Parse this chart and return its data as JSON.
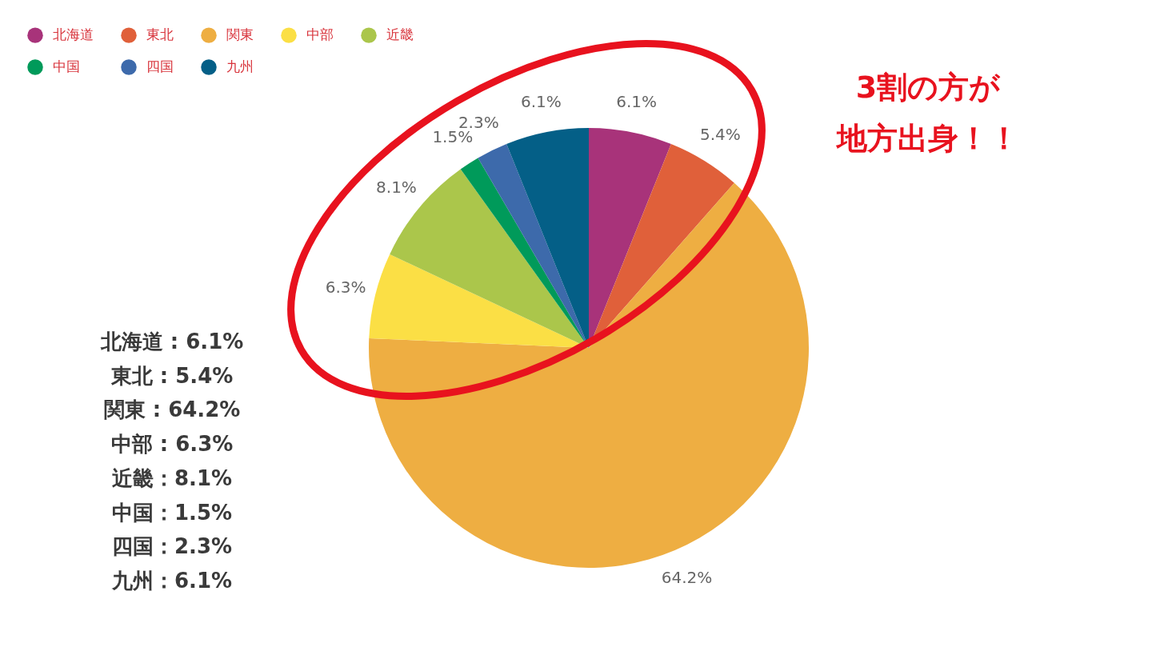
{
  "chart_data": {
    "type": "pie",
    "title": "3割の方が地方出身！！",
    "categories": [
      "北海道",
      "東北",
      "関東",
      "中部",
      "近畿",
      "中国",
      "四国",
      "九州"
    ],
    "values": [
      6.1,
      5.4,
      64.2,
      6.3,
      8.1,
      1.5,
      2.3,
      6.1
    ],
    "colors": [
      "#a8337a",
      "#e0603a",
      "#eeae42",
      "#fbdf45",
      "#abc64b",
      "#009a5a",
      "#3d6aab",
      "#045f87"
    ],
    "value_labels": [
      "6.1%",
      "5.4%",
      "64.2%",
      "6.3%",
      "8.1%",
      "1.5%",
      "2.3%",
      "6.1%"
    ],
    "legend": "top left",
    "annotations": [
      "北海道 : 6.1%",
      "東北 : 5.4%",
      "関東 : 64.2%",
      "中部 : 6.3%",
      "近畿：8.1%",
      "中国：1.5%",
      "四国：2.3%",
      "九州：6.1%"
    ]
  }
}
